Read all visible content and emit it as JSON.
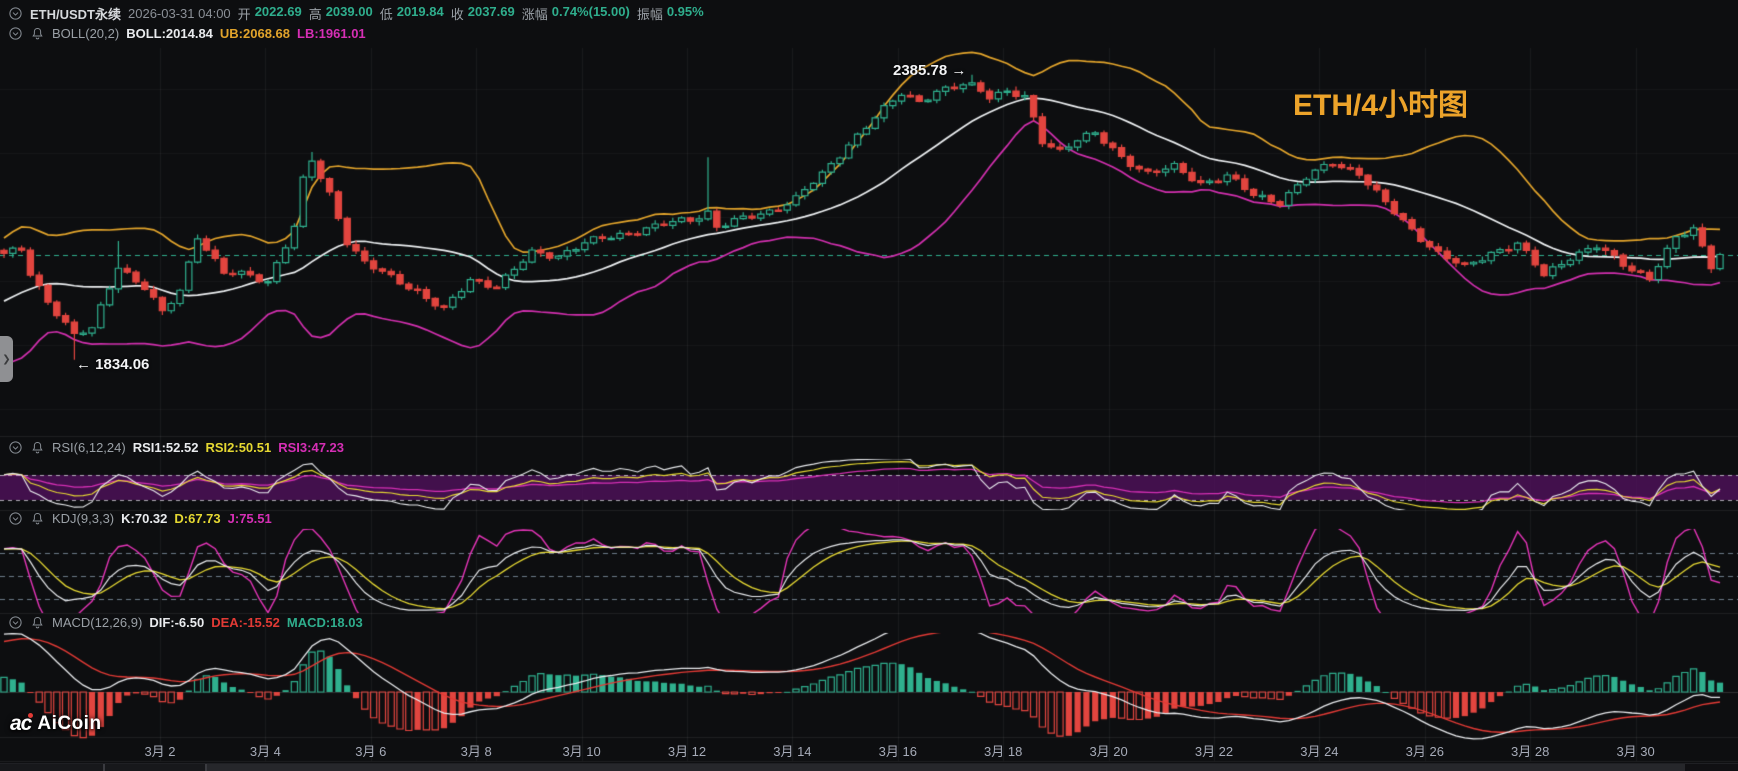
{
  "header": {
    "symbol": "ETH/USDT永续",
    "datetime": "2026-03-31 04:00",
    "fields": [
      {
        "label": "开",
        "value": "2022.69"
      },
      {
        "label": "高",
        "value": "2039.00"
      },
      {
        "label": "低",
        "value": "2019.84"
      },
      {
        "label": "收",
        "value": "2037.69"
      },
      {
        "label": "涨幅",
        "value": "0.74%(15.00)"
      },
      {
        "label": "振幅",
        "value": "0.95%"
      }
    ]
  },
  "boll": {
    "name": "BOLL(20,2)",
    "mb": "BOLL:2014.84",
    "ub": "UB:2068.68",
    "lb": "LB:1961.01"
  },
  "rsi": {
    "name": "RSI(6,12,24)",
    "v1": "RSI1:52.52",
    "v2": "RSI2:50.51",
    "v3": "RSI3:47.23"
  },
  "kdj": {
    "name": "KDJ(9,3,3)",
    "k": "K:70.32",
    "d": "D:67.73",
    "j": "J:75.51"
  },
  "macd": {
    "name": "MACD(12,26,9)",
    "dif": "DIF:-6.50",
    "dea": "DEA:-15.52",
    "macd": "MACD:18.03"
  },
  "watermark": "ETH/4小时图",
  "annotations": {
    "high": "2385.78 →",
    "low": "← 1834.06"
  },
  "logo": {
    "mark": "ac",
    "word": "AiCoin"
  },
  "expand_handle_glyph": "❯",
  "colors": {
    "up": "#2fb08e",
    "down": "#e2453f",
    "boll_ub": "#e2a42b",
    "boll_mb": "#eceff1",
    "boll_lb": "#d12fae",
    "last_price_line": "#2fae8d",
    "rsi1": "#e9ebee",
    "rsi2": "#e5d832",
    "rsi3": "#d62fb5",
    "rsi_band_fill": "rgba(82,17,94,0.78)",
    "kdj_k": "#e9ebee",
    "kdj_d": "#e5d832",
    "kdj_j": "#e534b8",
    "macd_dif": "#e9ebee",
    "macd_dea": "#e23a35",
    "watermark": "#eca32a"
  },
  "chart_data": {
    "type": "candlestick",
    "symbol": "ETH/USDT perpetual",
    "timeframe": "4h",
    "current_bar": {
      "open": 2022.69,
      "high": 2039.0,
      "low": 2019.84,
      "close": 2037.69,
      "change_pct": 0.74,
      "change_abs": 15.0,
      "amplitude_pct": 0.95
    },
    "indicator_values": {
      "boll": {
        "period": 20,
        "mult": 2,
        "mb": 2014.84,
        "ub": 2068.68,
        "lb": 1961.01
      },
      "rsi": {
        "periods": [
          6,
          12,
          24
        ],
        "rsi1": 52.52,
        "rsi2": 50.51,
        "rsi3": 47.23
      },
      "kdj": {
        "params": [
          9,
          3,
          3
        ],
        "k": 70.32,
        "d": 67.73,
        "j": 75.51
      },
      "macd": {
        "params": [
          12,
          26,
          9
        ],
        "dif": -6.5,
        "dea": -15.52,
        "macd": 18.03
      }
    },
    "extremes": {
      "high": 2385.78,
      "low": 1834.06,
      "last_close": 2037.69
    },
    "x_ticks": [
      "3月 2",
      "3月 4",
      "3月 6",
      "3月 8",
      "3月 10",
      "3月 12",
      "3月 14",
      "3月 16",
      "3月 18",
      "3月 20",
      "3月 22",
      "3月 24",
      "3月 26",
      "3月 28",
      "3月 30"
    ],
    "candle_count": 196,
    "close_anchors": [
      [
        0,
        2040
      ],
      [
        2,
        2046
      ],
      [
        3,
        1998
      ],
      [
        5,
        1948
      ],
      [
        8,
        1885
      ],
      [
        10,
        1892
      ],
      [
        13,
        2015
      ],
      [
        16,
        1975
      ],
      [
        18,
        1924
      ],
      [
        20,
        1966
      ],
      [
        22,
        2075
      ],
      [
        25,
        2002
      ],
      [
        28,
        1996
      ],
      [
        30,
        1986
      ],
      [
        33,
        2092
      ],
      [
        34,
        2180
      ],
      [
        35,
        2218
      ],
      [
        37,
        2155
      ],
      [
        39,
        2065
      ],
      [
        41,
        2022
      ],
      [
        44,
        1992
      ],
      [
        47,
        1968
      ],
      [
        50,
        1930
      ],
      [
        53,
        1988
      ],
      [
        56,
        1978
      ],
      [
        58,
        2008
      ],
      [
        60,
        2040
      ],
      [
        63,
        2036
      ],
      [
        66,
        2060
      ],
      [
        70,
        2076
      ],
      [
        74,
        2092
      ],
      [
        78,
        2106
      ],
      [
        80,
        2120
      ],
      [
        81,
        2092
      ],
      [
        84,
        2106
      ],
      [
        87,
        2122
      ],
      [
        90,
        2146
      ],
      [
        93,
        2192
      ],
      [
        96,
        2252
      ],
      [
        99,
        2302
      ],
      [
        102,
        2350
      ],
      [
        104,
        2336
      ],
      [
        106,
        2352
      ],
      [
        108,
        2360
      ],
      [
        110,
        2370
      ],
      [
        112,
        2346
      ],
      [
        114,
        2354
      ],
      [
        116,
        2340
      ],
      [
        118,
        2256
      ],
      [
        120,
        2240
      ],
      [
        122,
        2262
      ],
      [
        124,
        2270
      ],
      [
        127,
        2226
      ],
      [
        130,
        2196
      ],
      [
        133,
        2206
      ],
      [
        136,
        2176
      ],
      [
        139,
        2190
      ],
      [
        142,
        2152
      ],
      [
        145,
        2140
      ],
      [
        148,
        2186
      ],
      [
        151,
        2216
      ],
      [
        154,
        2196
      ],
      [
        157,
        2136
      ],
      [
        160,
        2086
      ],
      [
        163,
        2040
      ],
      [
        166,
        2012
      ],
      [
        169,
        2042
      ],
      [
        172,
        2058
      ],
      [
        175,
        1998
      ],
      [
        178,
        2034
      ],
      [
        181,
        2052
      ],
      [
        184,
        2020
      ],
      [
        187,
        1992
      ],
      [
        190,
        2068
      ],
      [
        192,
        2088
      ],
      [
        194,
        2018
      ],
      [
        195,
        2037.69
      ]
    ],
    "no_wiggle": [
      8,
      110,
      195
    ],
    "wick_overrides": {
      "8": {
        "low": 1834.06
      },
      "13": {
        "high": 2064
      },
      "35": {
        "high": 2236
      },
      "80": {
        "high": 2226
      },
      "110": {
        "high": 2385.78
      }
    }
  }
}
